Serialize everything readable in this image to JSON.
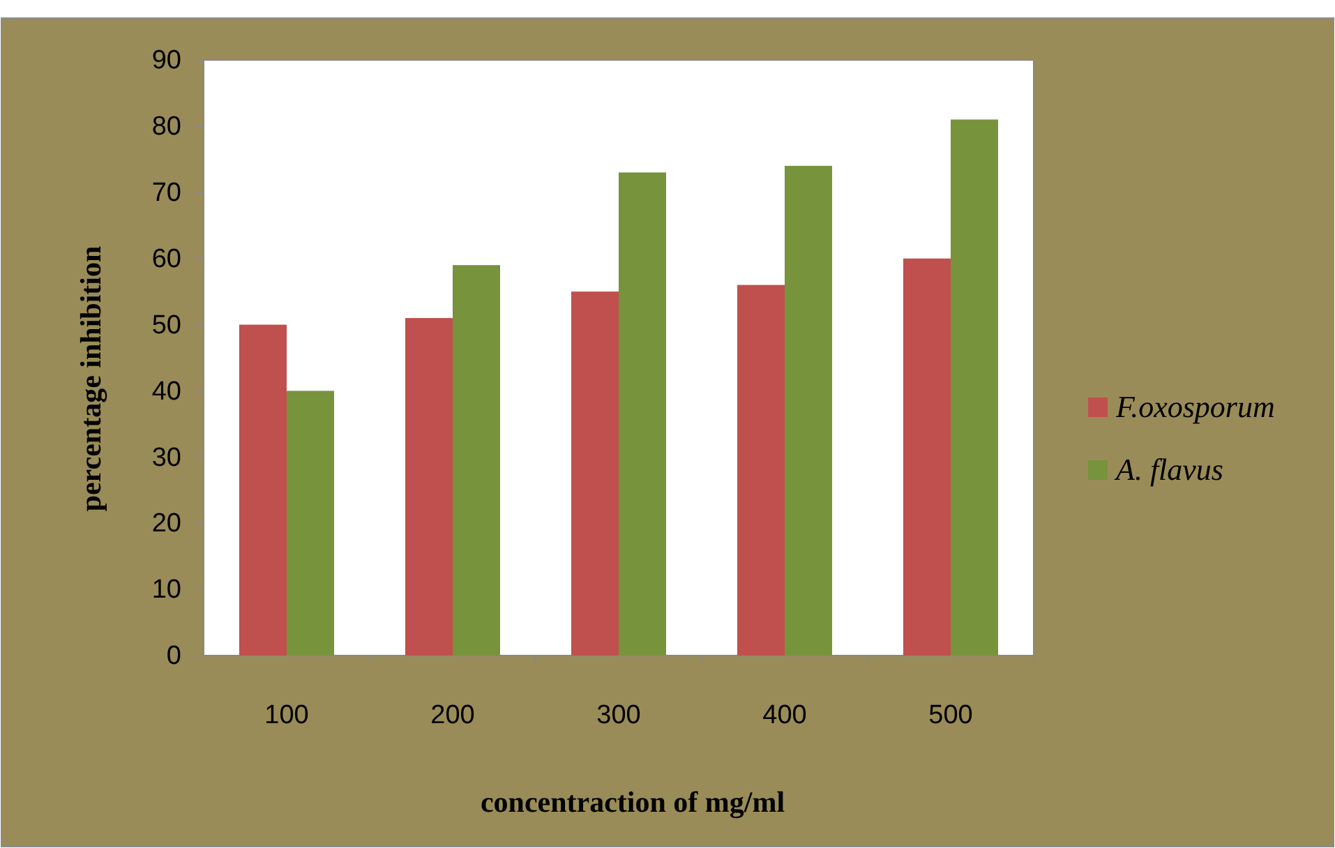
{
  "chart_data": {
    "type": "bar",
    "xlabel": "concentraction of mg/ml",
    "ylabel": "percentage inhibition",
    "categories": [
      "100",
      "200",
      "300",
      "400",
      "500"
    ],
    "series": [
      {
        "name": "F.oxosporum",
        "color": "#c0504d",
        "values": [
          50,
          51,
          55,
          56,
          60
        ]
      },
      {
        "name": "A. flavus",
        "color": "#77933c",
        "values": [
          40,
          59,
          73,
          74,
          81
        ]
      }
    ],
    "ylim": [
      0,
      90
    ],
    "yticks": [
      0,
      10,
      20,
      30,
      40,
      50,
      60,
      70,
      80,
      90
    ],
    "grid": false,
    "legend": "right"
  }
}
